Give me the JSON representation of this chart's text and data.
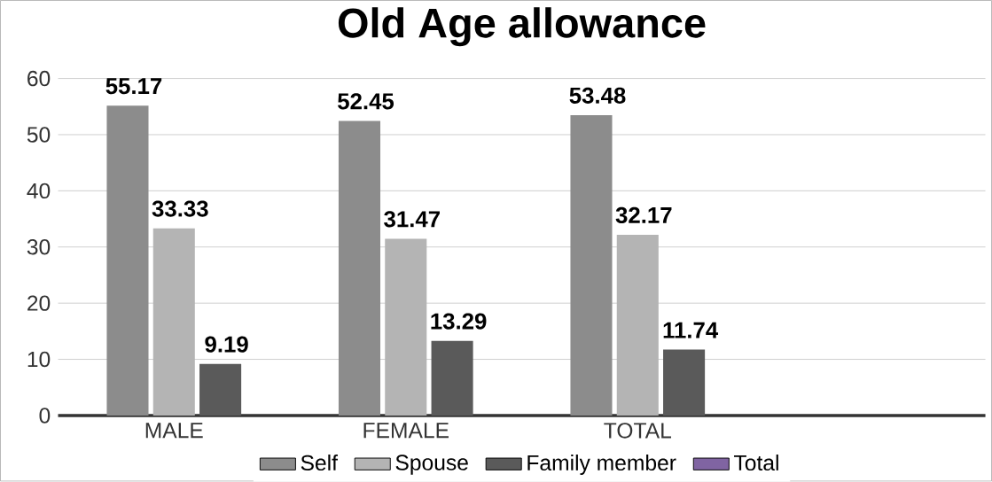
{
  "chart_data": {
    "type": "bar",
    "title": "Old Age allowance",
    "categories": [
      "MALE",
      "FEMALE",
      "TOTAL",
      null
    ],
    "series": [
      {
        "name": "Self",
        "color": "#8c8c8c",
        "values": [
          55.17,
          52.45,
          53.48,
          null
        ]
      },
      {
        "name": "Spouse",
        "color": "#b4b4b4",
        "values": [
          33.33,
          31.47,
          32.17,
          null
        ]
      },
      {
        "name": "Family member",
        "color": "#5a5a5a",
        "values": [
          9.19,
          13.29,
          11.74,
          null
        ]
      },
      {
        "name": "Total",
        "color": "#8064a2",
        "values": [
          null,
          null,
          null,
          null
        ]
      }
    ],
    "ylim": [
      0,
      60
    ],
    "yticks": [
      0,
      10,
      20,
      30,
      40,
      50,
      60
    ],
    "grid": "y",
    "legend": "bottom",
    "data_labels": true
  }
}
